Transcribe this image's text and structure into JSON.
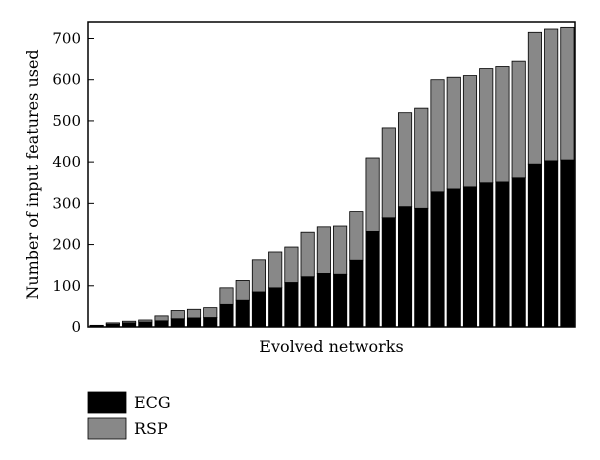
{
  "chart_data": {
    "type": "bar",
    "stacked": true,
    "xlabel": "Evolved networks",
    "ylabel": "Number of input features used",
    "ylim": [
      0,
      740
    ],
    "yticks": [
      0,
      100,
      200,
      300,
      400,
      500,
      600,
      700
    ],
    "grid": false,
    "legend_position": "bottom-left",
    "series": [
      {
        "name": "ECG",
        "color": "#000000",
        "values": [
          3,
          7,
          10,
          12,
          15,
          20,
          22,
          23,
          55,
          65,
          85,
          95,
          108,
          122,
          130,
          128,
          162,
          232,
          265,
          292,
          288,
          328,
          335,
          340,
          350,
          352,
          362,
          395,
          403,
          405
        ]
      },
      {
        "name": "RSP",
        "color": "#888888",
        "values": [
          1,
          3,
          4,
          5,
          12,
          20,
          21,
          24,
          40,
          48,
          78,
          87,
          86,
          108,
          113,
          117,
          118,
          178,
          218,
          228,
          243,
          272,
          271,
          270,
          277,
          280,
          283,
          320,
          320,
          322
        ]
      }
    ]
  }
}
